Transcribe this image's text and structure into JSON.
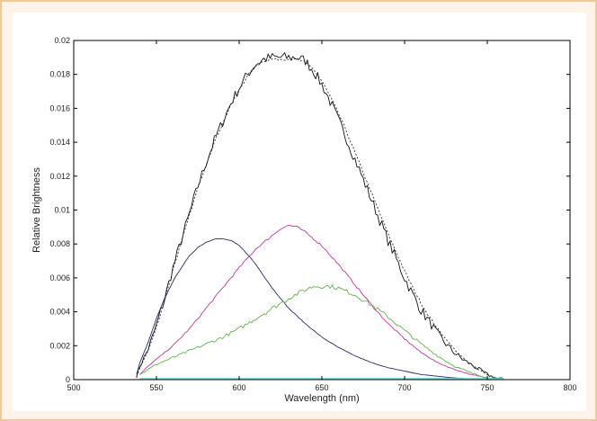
{
  "colors": {
    "background": "#fdf3e9",
    "border": "#f2c79a",
    "axis": "#000000",
    "series_black_solid": "#111111",
    "series_black_dotted": "#333333",
    "series_blue": "#2a2a6e",
    "series_magenta": "#c0399f",
    "series_green": "#5fb34a",
    "series_cyan": "#7fd6da"
  },
  "chart_data": {
    "type": "line",
    "title": "",
    "xlabel": "Wavelength (nm)",
    "ylabel": "Relative Brightness",
    "xlim": [
      500,
      800
    ],
    "ylim": [
      0,
      0.02
    ],
    "grid": false,
    "legend": "none",
    "xticks": [
      "500",
      "550",
      "600",
      "650",
      "700",
      "750",
      "800"
    ],
    "yticks": [
      "0",
      "0.002",
      "0.004",
      "0.006",
      "0.008",
      "0.01",
      "0.012",
      "0.014",
      "0.016",
      "0.018",
      "0.02"
    ],
    "series": [
      {
        "style": "solid",
        "color_key": "series_black_solid",
        "noise": 0.00045,
        "x": [
          538,
          540,
          545,
          550,
          555,
          560,
          565,
          570,
          575,
          580,
          585,
          590,
          595,
          600,
          605,
          610,
          615,
          620,
          625,
          630,
          635,
          640,
          645,
          650,
          655,
          660,
          665,
          670,
          675,
          680,
          685,
          690,
          695,
          700,
          705,
          710,
          715,
          720,
          725,
          730,
          735,
          740,
          745,
          750,
          755,
          760
        ],
        "y": [
          0.0002,
          0.0008,
          0.0018,
          0.0032,
          0.0048,
          0.0066,
          0.0082,
          0.0098,
          0.0114,
          0.0128,
          0.0141,
          0.0152,
          0.0163,
          0.0172,
          0.018,
          0.0186,
          0.0189,
          0.019,
          0.019,
          0.019,
          0.019,
          0.0188,
          0.0182,
          0.0174,
          0.0164,
          0.0153,
          0.0142,
          0.013,
          0.0118,
          0.0106,
          0.0094,
          0.0082,
          0.0071,
          0.006,
          0.005,
          0.0041,
          0.0034,
          0.0027,
          0.0021,
          0.0016,
          0.0012,
          0.0009,
          0.0006,
          0.0003,
          0.0001,
          0.0
        ]
      },
      {
        "style": "dotted",
        "color_key": "series_black_dotted",
        "noise": 0.0001,
        "x": [
          538,
          540,
          545,
          550,
          555,
          560,
          565,
          570,
          575,
          580,
          585,
          590,
          595,
          600,
          605,
          610,
          615,
          620,
          625,
          630,
          635,
          640,
          645,
          650,
          655,
          660,
          665,
          670,
          675,
          680,
          685,
          690,
          695,
          700,
          705,
          710,
          715,
          720,
          725,
          730,
          735,
          740,
          745,
          750,
          755,
          760
        ],
        "y": [
          0.0002,
          0.0007,
          0.0017,
          0.0031,
          0.0047,
          0.0065,
          0.0081,
          0.0097,
          0.0113,
          0.0127,
          0.014,
          0.0151,
          0.0162,
          0.0171,
          0.0179,
          0.0185,
          0.0188,
          0.0189,
          0.0189,
          0.0189,
          0.0189,
          0.0187,
          0.0183,
          0.0176,
          0.0167,
          0.0157,
          0.0146,
          0.0134,
          0.0122,
          0.011,
          0.0098,
          0.0086,
          0.0075,
          0.0064,
          0.0054,
          0.0045,
          0.0037,
          0.003,
          0.0024,
          0.0018,
          0.0013,
          0.0009,
          0.0006,
          0.0003,
          0.0001,
          0.0
        ]
      },
      {
        "style": "solid",
        "color_key": "series_blue",
        "noise": 3e-05,
        "x": [
          538,
          540,
          545,
          550,
          555,
          560,
          565,
          570,
          575,
          580,
          585,
          590,
          595,
          600,
          605,
          610,
          615,
          620,
          630,
          640,
          650,
          660,
          670,
          680,
          690,
          700,
          710,
          720,
          730,
          740,
          750,
          760
        ],
        "y": [
          0.0003,
          0.001,
          0.0022,
          0.0036,
          0.0048,
          0.0058,
          0.0066,
          0.0073,
          0.0078,
          0.0081,
          0.0083,
          0.0083,
          0.0082,
          0.0079,
          0.0074,
          0.0068,
          0.0061,
          0.0054,
          0.0042,
          0.0033,
          0.0025,
          0.0019,
          0.0014,
          0.001,
          0.0007,
          0.0005,
          0.0003,
          0.0002,
          0.0001,
          5e-05,
          0.0,
          0.0
        ]
      },
      {
        "style": "solid",
        "color_key": "series_magenta",
        "noise": 8e-05,
        "x": [
          540,
          545,
          550,
          560,
          570,
          580,
          590,
          600,
          610,
          620,
          625,
          630,
          635,
          640,
          650,
          660,
          670,
          680,
          690,
          700,
          710,
          720,
          730,
          740,
          750,
          760
        ],
        "y": [
          0.0003,
          0.0008,
          0.0012,
          0.002,
          0.003,
          0.0042,
          0.0054,
          0.0066,
          0.0077,
          0.0085,
          0.0089,
          0.0091,
          0.009,
          0.0087,
          0.0079,
          0.0068,
          0.0056,
          0.0044,
          0.0033,
          0.0024,
          0.0016,
          0.001,
          0.0006,
          0.0003,
          0.0001,
          0.0
        ]
      },
      {
        "style": "solid",
        "color_key": "series_green",
        "noise": 0.00018,
        "x": [
          540,
          545,
          550,
          560,
          570,
          580,
          590,
          600,
          610,
          620,
          630,
          640,
          645,
          650,
          655,
          660,
          670,
          680,
          690,
          700,
          710,
          720,
          730,
          740,
          750,
          760
        ],
        "y": [
          0.0003,
          0.0006,
          0.0009,
          0.0013,
          0.0017,
          0.0021,
          0.0025,
          0.003,
          0.0036,
          0.0042,
          0.0048,
          0.0053,
          0.0055,
          0.0055,
          0.0055,
          0.0054,
          0.005,
          0.0044,
          0.0037,
          0.0029,
          0.0021,
          0.0014,
          0.0008,
          0.0004,
          0.0001,
          0.0
        ]
      },
      {
        "style": "solid",
        "color_key": "series_cyan",
        "noise": 0.0,
        "x": [
          540,
          760
        ],
        "y": [
          5e-05,
          5e-05
        ]
      }
    ]
  }
}
